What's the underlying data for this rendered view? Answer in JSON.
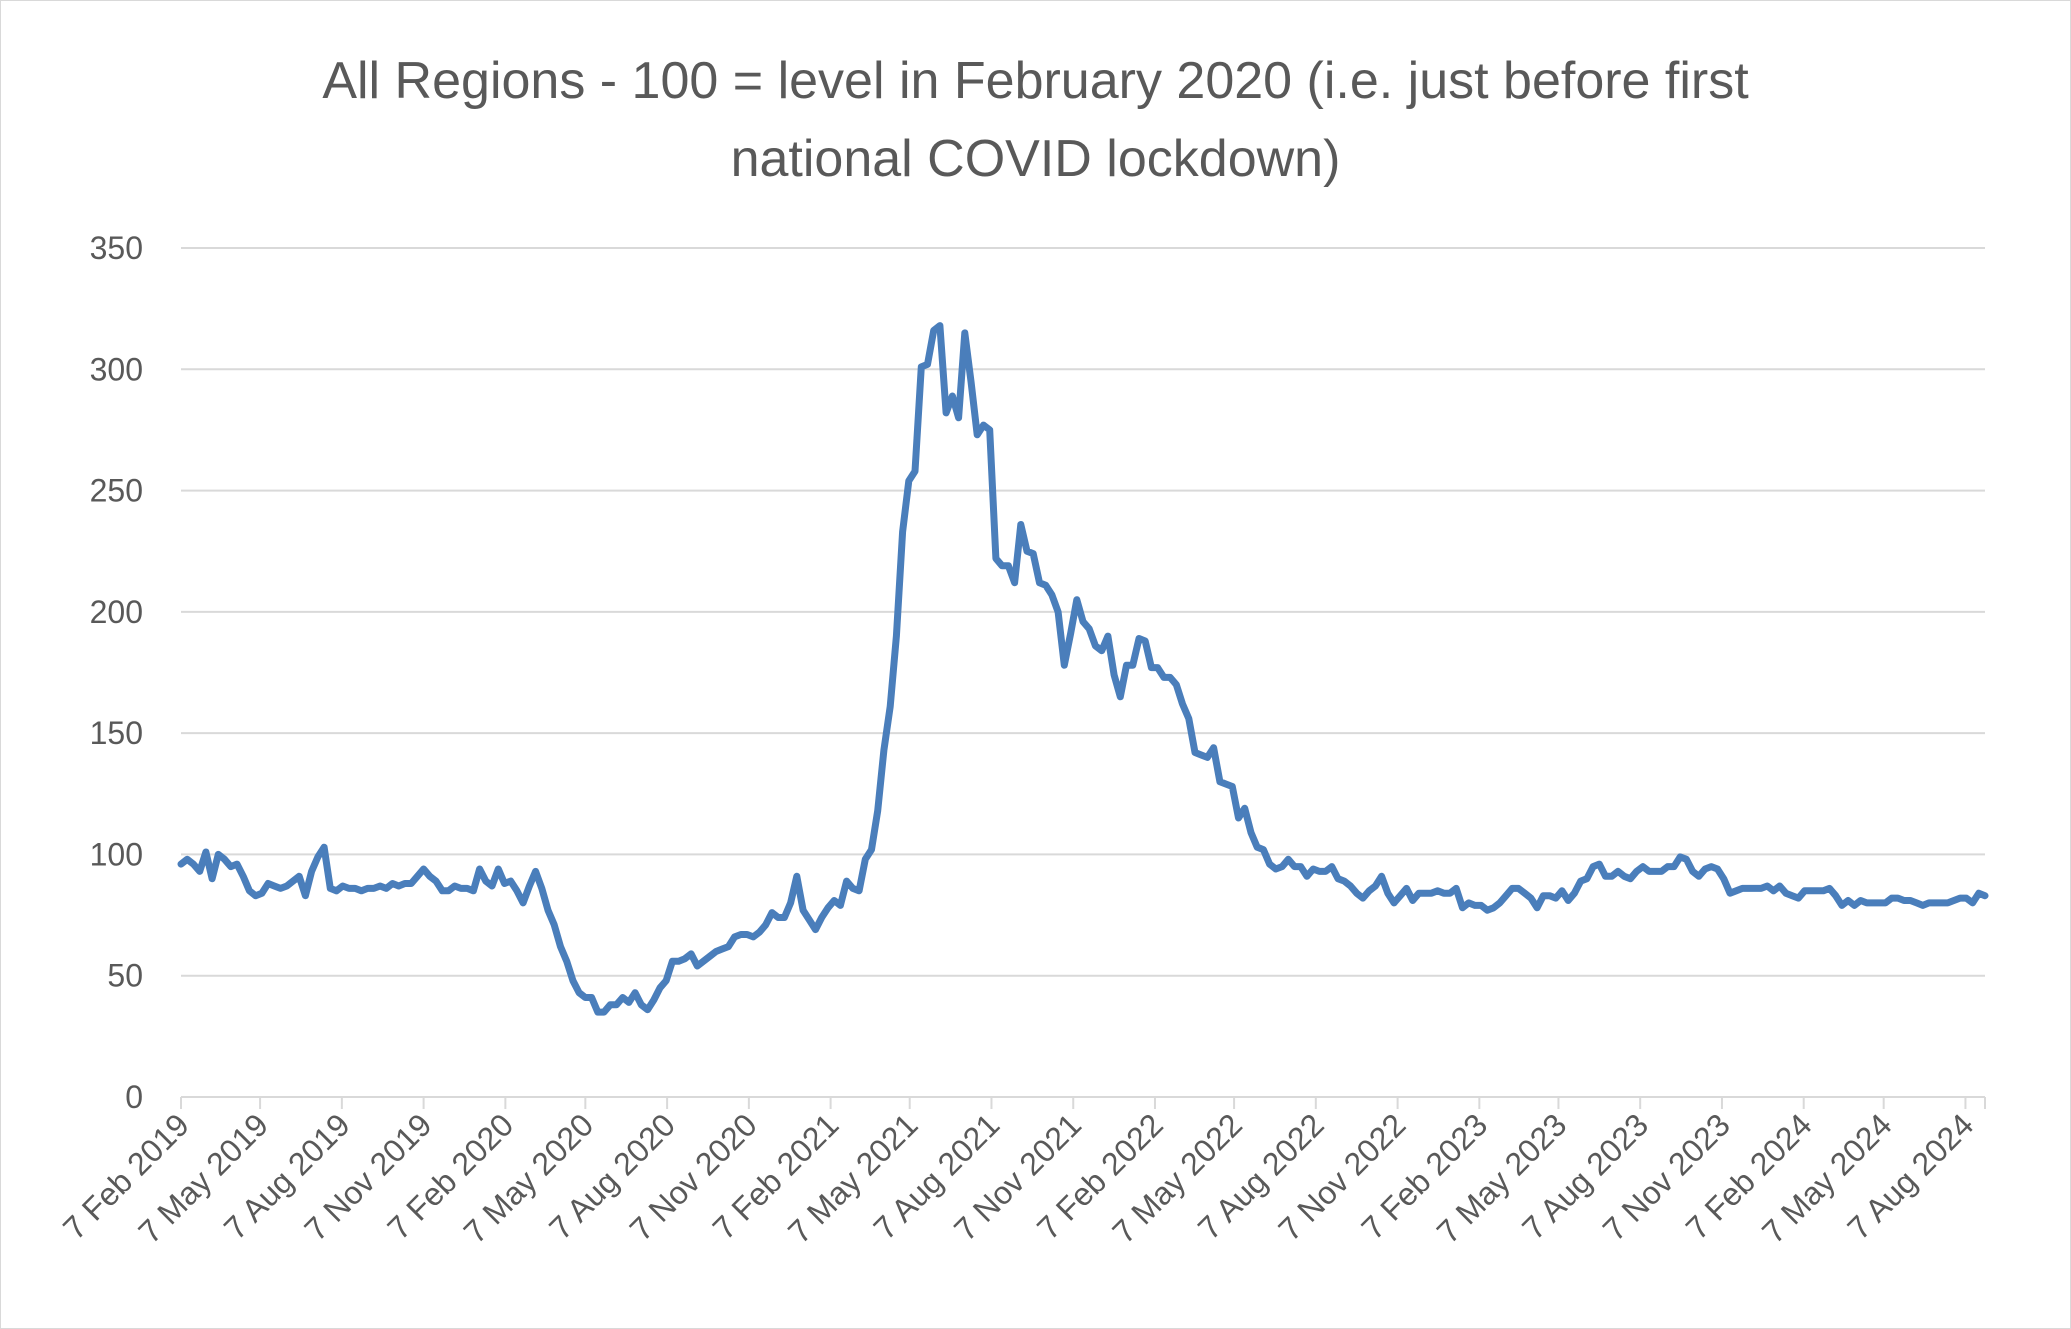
{
  "chart_data": {
    "type": "line",
    "title_line1": "All Regions - 100 = level in February 2020 (i.e. just before first",
    "title_line2": "national COVID lockdown)",
    "xlabel": "",
    "ylabel": "",
    "ylim": [
      0,
      350
    ],
    "y_ticks": [
      "0",
      "50",
      "100",
      "150",
      "200",
      "250",
      "300",
      "350"
    ],
    "x_tick_labels": [
      "7 Feb 2019",
      "7 May 2019",
      "7 Aug 2019",
      "7 Nov 2019",
      "7 Feb 2020",
      "7 May 2020",
      "7 Aug 2020",
      "7 Nov 2020",
      "7 Feb 2021",
      "7 May 2021",
      "7 Aug 2021",
      "7 Nov 2021",
      "7 Feb 2022",
      "7 May 2022",
      "7 Aug 2022",
      "7 Nov 2022",
      "7 Feb 2023",
      "7 May 2023",
      "7 Aug 2023",
      "7 Nov 2023",
      "7 Feb 2024",
      "7 May 2024",
      "7 Aug 2024"
    ],
    "x_range": [
      "2019-02-07",
      "2024-08-29"
    ],
    "grid": true,
    "line_color": "#4a7ebb",
    "grid_color": "#d9d9d9",
    "series": [
      {
        "x": [
          "2019-02-07",
          "2019-02-14",
          "2019-02-21",
          "2019-02-28",
          "2019-03-07",
          "2019-03-14",
          "2019-03-21",
          "2019-03-28",
          "2019-04-04",
          "2019-04-11",
          "2019-04-18",
          "2019-04-25",
          "2019-05-02",
          "2019-05-09",
          "2019-05-16",
          "2019-05-23",
          "2019-05-30",
          "2019-06-06",
          "2019-06-13",
          "2019-06-20",
          "2019-06-27",
          "2019-07-04",
          "2019-07-11",
          "2019-07-18",
          "2019-07-25",
          "2019-08-01",
          "2019-08-08",
          "2019-08-15",
          "2019-08-22",
          "2019-08-29",
          "2019-09-05",
          "2019-09-12",
          "2019-09-19",
          "2019-09-26",
          "2019-10-03",
          "2019-10-10",
          "2019-10-17",
          "2019-10-24",
          "2019-10-31",
          "2019-11-07",
          "2019-11-14",
          "2019-11-21",
          "2019-11-28",
          "2019-12-05",
          "2019-12-12",
          "2019-12-19",
          "2019-12-26",
          "2020-01-02",
          "2020-01-09",
          "2020-01-16",
          "2020-01-23",
          "2020-01-30",
          "2020-02-06",
          "2020-02-13",
          "2020-02-20",
          "2020-02-27",
          "2020-03-05",
          "2020-03-12",
          "2020-03-19",
          "2020-03-26",
          "2020-04-02",
          "2020-04-09",
          "2020-04-16",
          "2020-04-23",
          "2020-04-30",
          "2020-05-07",
          "2020-05-14",
          "2020-05-21",
          "2020-05-28",
          "2020-06-04",
          "2020-06-11",
          "2020-06-18",
          "2020-06-25",
          "2020-07-02",
          "2020-07-09",
          "2020-07-16",
          "2020-07-23",
          "2020-07-30",
          "2020-08-06",
          "2020-08-13",
          "2020-08-20",
          "2020-08-27",
          "2020-09-03",
          "2020-09-10",
          "2020-09-17",
          "2020-09-24",
          "2020-10-01",
          "2020-10-08",
          "2020-10-15",
          "2020-10-22",
          "2020-10-29",
          "2020-11-05",
          "2020-11-12",
          "2020-11-19",
          "2020-11-26",
          "2020-12-03",
          "2020-12-10",
          "2020-12-17",
          "2020-12-24",
          "2020-12-31",
          "2021-01-07",
          "2021-01-14",
          "2021-01-21",
          "2021-01-28",
          "2021-02-04",
          "2021-02-11",
          "2021-02-18",
          "2021-02-25",
          "2021-03-04",
          "2021-03-11",
          "2021-03-18",
          "2021-03-25",
          "2021-04-01",
          "2021-04-08",
          "2021-04-15",
          "2021-04-22",
          "2021-04-29",
          "2021-05-06",
          "2021-05-13",
          "2021-05-20",
          "2021-05-27",
          "2021-06-03",
          "2021-06-10",
          "2021-06-17",
          "2021-06-24",
          "2021-07-01",
          "2021-07-08",
          "2021-07-15",
          "2021-07-22",
          "2021-07-29",
          "2021-08-05",
          "2021-08-12",
          "2021-08-19",
          "2021-08-26",
          "2021-09-02",
          "2021-09-09",
          "2021-09-16",
          "2021-09-23",
          "2021-09-30",
          "2021-10-07",
          "2021-10-14",
          "2021-10-21",
          "2021-10-28",
          "2021-11-04",
          "2021-11-11",
          "2021-11-18",
          "2021-11-25",
          "2021-12-02",
          "2021-12-09",
          "2021-12-16",
          "2021-12-23",
          "2021-12-30",
          "2022-01-06",
          "2022-01-13",
          "2022-01-20",
          "2022-01-27",
          "2022-02-03",
          "2022-02-10",
          "2022-02-17",
          "2022-02-24",
          "2022-03-03",
          "2022-03-10",
          "2022-03-17",
          "2022-03-24",
          "2022-03-31",
          "2022-04-07",
          "2022-04-14",
          "2022-04-21",
          "2022-04-28",
          "2022-05-05",
          "2022-05-12",
          "2022-05-19",
          "2022-05-26",
          "2022-06-02",
          "2022-06-09",
          "2022-06-16",
          "2022-06-23",
          "2022-06-30",
          "2022-07-07",
          "2022-07-14",
          "2022-07-21",
          "2022-07-28",
          "2022-08-04",
          "2022-08-11",
          "2022-08-18",
          "2022-08-25",
          "2022-09-01",
          "2022-09-08",
          "2022-09-15",
          "2022-09-22",
          "2022-09-29",
          "2022-10-06",
          "2022-10-13",
          "2022-10-20",
          "2022-10-27",
          "2022-11-03",
          "2022-11-10",
          "2022-11-17",
          "2022-11-24",
          "2022-12-01",
          "2022-12-08",
          "2022-12-15",
          "2022-12-22",
          "2022-12-29",
          "2023-01-05",
          "2023-01-12",
          "2023-01-19",
          "2023-01-26",
          "2023-02-02",
          "2023-02-09",
          "2023-02-16",
          "2023-02-23",
          "2023-03-02",
          "2023-03-09",
          "2023-03-16",
          "2023-03-23",
          "2023-03-30",
          "2023-04-06",
          "2023-04-13",
          "2023-04-20",
          "2023-04-27",
          "2023-05-04",
          "2023-05-11",
          "2023-05-18",
          "2023-05-25",
          "2023-06-01",
          "2023-06-08",
          "2023-06-15",
          "2023-06-22",
          "2023-06-29",
          "2023-07-06",
          "2023-07-13",
          "2023-07-20",
          "2023-07-27",
          "2023-08-03",
          "2023-08-10",
          "2023-08-17",
          "2023-08-24",
          "2023-08-31",
          "2023-09-07",
          "2023-09-14",
          "2023-09-21",
          "2023-09-28",
          "2023-10-05",
          "2023-10-12",
          "2023-10-19",
          "2023-10-26",
          "2023-11-02",
          "2023-11-09",
          "2023-11-16",
          "2023-11-23",
          "2023-11-30",
          "2023-12-07",
          "2023-12-14",
          "2023-12-21",
          "2023-12-28",
          "2024-01-04",
          "2024-01-11",
          "2024-01-18",
          "2024-01-25",
          "2024-02-01",
          "2024-02-08",
          "2024-02-15",
          "2024-02-22",
          "2024-02-29",
          "2024-03-07",
          "2024-03-14",
          "2024-03-21",
          "2024-03-28",
          "2024-04-04",
          "2024-04-11",
          "2024-04-18",
          "2024-04-25",
          "2024-05-02",
          "2024-05-09",
          "2024-05-16",
          "2024-05-23",
          "2024-05-30",
          "2024-06-06",
          "2024-06-13",
          "2024-06-20",
          "2024-06-27",
          "2024-07-04",
          "2024-07-11",
          "2024-07-18",
          "2024-07-25",
          "2024-08-01",
          "2024-08-08",
          "2024-08-15",
          "2024-08-22",
          "2024-08-29"
        ],
        "values": [
          96,
          98,
          96,
          93,
          101,
          90,
          100,
          98,
          95,
          96,
          91,
          85,
          83,
          84,
          88,
          87,
          86,
          87,
          89,
          91,
          83,
          93,
          99,
          103,
          86,
          85,
          87,
          86,
          86,
          85,
          86,
          86,
          87,
          86,
          88,
          87,
          88,
          88,
          91,
          94,
          91,
          89,
          85,
          85,
          87,
          86,
          86,
          85,
          94,
          89,
          87,
          94,
          88,
          89,
          85,
          80,
          87,
          93,
          86,
          77,
          71,
          62,
          56,
          48,
          43,
          41,
          41,
          35,
          35,
          38,
          38,
          41,
          39,
          43,
          38,
          36,
          40,
          45,
          48,
          56,
          56,
          57,
          59,
          54,
          56,
          58,
          60,
          61,
          62,
          66,
          67,
          67,
          66,
          68,
          71,
          76,
          74,
          74,
          80,
          91,
          77,
          73,
          69,
          74,
          78,
          81,
          79,
          89,
          86,
          85,
          98,
          102,
          118,
          143,
          161,
          190,
          233,
          254,
          258,
          301,
          302,
          316,
          318,
          282,
          289,
          280,
          315,
          295,
          273,
          277,
          275,
          222,
          219,
          219,
          212,
          236,
          225,
          224,
          212,
          211,
          207,
          200,
          178,
          191,
          205,
          196,
          193,
          186,
          184,
          190,
          174,
          165,
          178,
          178,
          189,
          188,
          177,
          177,
          173,
          173,
          170,
          162,
          156,
          142,
          141,
          140,
          144,
          130,
          129,
          128,
          115,
          119,
          109,
          103,
          102,
          96,
          94,
          95,
          98,
          95,
          95,
          91,
          94,
          93,
          93,
          95,
          90,
          89,
          87,
          84,
          82,
          85,
          87,
          91,
          84,
          80,
          83,
          86,
          81,
          84,
          84,
          84,
          85,
          84,
          84,
          86,
          78,
          80,
          79,
          79,
          77,
          78,
          80,
          83,
          86,
          86,
          84,
          82,
          78,
          83,
          83,
          82,
          85,
          81,
          84,
          89,
          90,
          95,
          96,
          91,
          91,
          93,
          91,
          90,
          93,
          95,
          93,
          93,
          93,
          95,
          95,
          99,
          98,
          93,
          91,
          94,
          95,
          94,
          90,
          84,
          85,
          86,
          86,
          86,
          86,
          87,
          85,
          87,
          84,
          83,
          82,
          85,
          85,
          85,
          85,
          86,
          83,
          79,
          81,
          79,
          81,
          80,
          80,
          80,
          80,
          82,
          82,
          81,
          81,
          80,
          79,
          80,
          80,
          80,
          80,
          81,
          82,
          82,
          80,
          84,
          83
        ]
      }
    ]
  }
}
